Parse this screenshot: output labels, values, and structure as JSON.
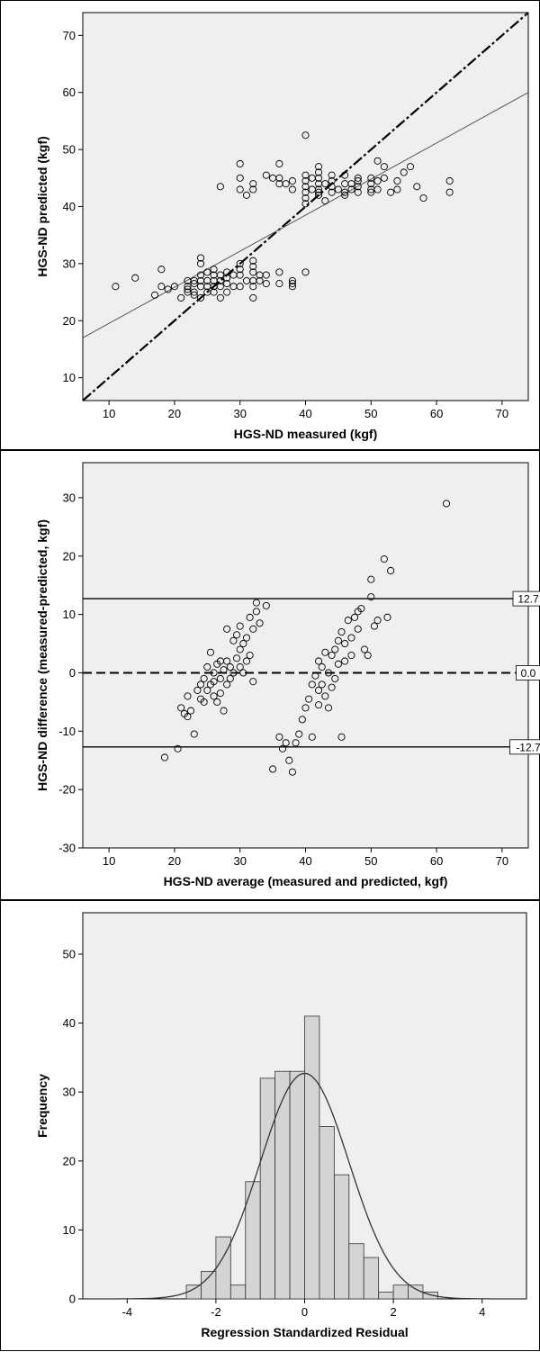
{
  "chart_data": [
    {
      "type": "scatter",
      "xlabel": "HGS-ND measured (kgf)",
      "ylabel": "HGS-ND predicted (kgf)",
      "xlim": [
        6,
        74
      ],
      "ylim": [
        6,
        74
      ],
      "xticks": [
        10,
        20,
        30,
        40,
        50,
        60,
        70
      ],
      "yticks": [
        10,
        20,
        30,
        40,
        50,
        60,
        70
      ],
      "reference_lines": [
        {
          "style": "dashed",
          "kind": "identity",
          "x": [
            6,
            74
          ],
          "y": [
            6,
            74
          ]
        },
        {
          "style": "solid",
          "kind": "fit",
          "x": [
            6,
            74
          ],
          "y": [
            17,
            60
          ]
        }
      ],
      "x": [
        11,
        14,
        17,
        18,
        18,
        19,
        20,
        21,
        22,
        22,
        22,
        22,
        23,
        23,
        23,
        23,
        24,
        24,
        24,
        24,
        24,
        24,
        25,
        25,
        25,
        25,
        26,
        26,
        26,
        26,
        26,
        27,
        27,
        27,
        27,
        27,
        28,
        28,
        28,
        28,
        29,
        29,
        30,
        30,
        30,
        30,
        30,
        30,
        30,
        31,
        31,
        32,
        32,
        32,
        32,
        32,
        32,
        32,
        32,
        33,
        33,
        34,
        34,
        34,
        35,
        36,
        36,
        36,
        36,
        36,
        37,
        38,
        38,
        38,
        38,
        38,
        40,
        40,
        40,
        40,
        40,
        40,
        40,
        40,
        41,
        41,
        42,
        42,
        42,
        42,
        42,
        42,
        42,
        43,
        43,
        44,
        44,
        44,
        44,
        45,
        46,
        46,
        46,
        46,
        47,
        47,
        48,
        48,
        48,
        48,
        50,
        50,
        50,
        50,
        51,
        51,
        51,
        52,
        52,
        53,
        54,
        54,
        55,
        56,
        57,
        58,
        62,
        62
      ],
      "y": [
        26,
        27.5,
        24.5,
        29,
        26,
        25.5,
        26,
        24,
        25,
        26,
        27,
        25.5,
        26.5,
        25,
        27,
        24.5,
        31,
        30,
        28,
        27,
        26,
        24,
        28.5,
        27,
        26,
        25,
        29,
        28,
        27,
        26,
        25,
        43.5,
        28,
        27,
        26,
        24,
        28.5,
        27.5,
        26.5,
        25,
        28,
        26,
        47.5,
        45,
        43,
        30,
        29,
        28,
        26,
        42,
        27,
        44,
        43,
        30.5,
        29.5,
        28.5,
        27,
        26,
        24,
        28,
        27,
        45.5,
        28,
        26.5,
        45,
        47.5,
        45,
        44,
        28.5,
        26.5,
        44,
        44.5,
        43,
        27,
        26.5,
        26,
        52.5,
        45.5,
        44.5,
        43.5,
        42.5,
        41.5,
        40.5,
        28.5,
        45,
        43,
        47,
        46,
        45,
        44,
        43,
        42.5,
        42,
        44,
        41,
        45.5,
        44.5,
        43.5,
        42.5,
        43,
        45.5,
        44,
        42.5,
        42,
        44,
        43,
        45,
        44.5,
        43.5,
        42.5,
        45,
        44,
        43,
        42.5,
        48,
        44.5,
        43,
        47,
        45,
        42.5,
        44.5,
        43,
        46,
        47,
        43.5,
        41.5,
        44.5,
        42.5
      ]
    },
    {
      "type": "scatter",
      "xlabel": "HGS-ND average (measured and predicted, kgf)",
      "ylabel": "HGS-ND difference (measured-predicted, kgf)",
      "xlim": [
        6,
        74
      ],
      "ylim": [
        -30,
        36
      ],
      "xticks": [
        10,
        20,
        30,
        40,
        50,
        60,
        70
      ],
      "yticks": [
        -30,
        -20,
        -10,
        0,
        10,
        20,
        30
      ],
      "reference_lines": [
        {
          "style": "solid",
          "value": 12.7,
          "label": "12.7"
        },
        {
          "style": "dashed",
          "value": 0.0,
          "label": "0.0"
        },
        {
          "style": "solid",
          "value": -12.7,
          "label": "-12.7"
        }
      ],
      "x": [
        18.5,
        20.5,
        21,
        21.5,
        22,
        22,
        22.5,
        23,
        23.5,
        24,
        24,
        24.5,
        24.5,
        25,
        25,
        25.5,
        25.5,
        26,
        26,
        26,
        26.5,
        26.5,
        27,
        27,
        27,
        27.5,
        27.5,
        28,
        28,
        28,
        28.5,
        28.5,
        29,
        29,
        29.5,
        29.5,
        30,
        30,
        30,
        30.5,
        30.5,
        31,
        31,
        31.5,
        31.5,
        32,
        32,
        32.5,
        32.5,
        33,
        34,
        35,
        36,
        36.5,
        37,
        37.5,
        38,
        38.5,
        39,
        39.5,
        40,
        40.5,
        41,
        41,
        41.5,
        42,
        42,
        42,
        42.5,
        42.5,
        43,
        43,
        43.5,
        43.5,
        44,
        44,
        44.5,
        44.5,
        45,
        45,
        45.5,
        45.5,
        46,
        46,
        46.5,
        47,
        47,
        47.5,
        48,
        48,
        48.5,
        49,
        49.5,
        50,
        50,
        50.5,
        51,
        52,
        52.5,
        53,
        61.5
      ],
      "y": [
        -14.5,
        -13,
        -6,
        -7,
        -4,
        -7.5,
        -6.5,
        -10.5,
        -3,
        -2,
        -4.5,
        -1,
        -5,
        1,
        -3,
        3.5,
        -2,
        0,
        -4,
        -1.5,
        1.5,
        -5,
        2,
        -1,
        -3.5,
        0.5,
        -6.5,
        7.5,
        2,
        -2,
        1,
        -1,
        5.5,
        0,
        6.5,
        2.5,
        8,
        4,
        1,
        5,
        0,
        6,
        2,
        9.5,
        3,
        7.5,
        -1.5,
        12,
        10.5,
        8.5,
        11.5,
        -16.5,
        -11,
        -13,
        -12,
        -15,
        -17,
        -12,
        -10.5,
        -8,
        -6,
        -4.5,
        -2,
        -11,
        -0.5,
        2,
        -3,
        -5.5,
        1,
        -2,
        3.5,
        -4,
        0,
        -6,
        3,
        -2.5,
        4,
        -1,
        5.5,
        1.5,
        7,
        -11,
        5,
        2,
        9,
        6,
        3,
        9.5,
        10.5,
        7.5,
        11,
        4,
        3,
        13,
        16,
        8,
        9,
        19.5,
        9.5,
        17.5,
        29
      ]
    },
    {
      "type": "histogram",
      "xlabel": "Regression Standardized Residual",
      "ylabel": "Frequency",
      "xlim": [
        -5,
        5
      ],
      "ylim": [
        0,
        56
      ],
      "xticks": [
        -4,
        -2,
        0,
        2,
        4
      ],
      "yticks": [
        0,
        10,
        20,
        30,
        40,
        50
      ],
      "bin_width": 0.333,
      "bin_starts": [
        -2.667,
        -2.333,
        -2.0,
        -1.667,
        -1.333,
        -1.0,
        -0.667,
        -0.333,
        0.0,
        0.333,
        0.667,
        1.0,
        1.333,
        1.667,
        2.0,
        2.333,
        2.667
      ],
      "values": [
        2,
        4,
        9,
        2,
        17,
        32,
        33,
        33,
        41,
        25,
        18,
        8,
        6,
        1,
        2,
        2,
        1
      ],
      "normal_curve": {
        "mean": 0,
        "sd": 1,
        "peak": 32.7
      }
    }
  ]
}
